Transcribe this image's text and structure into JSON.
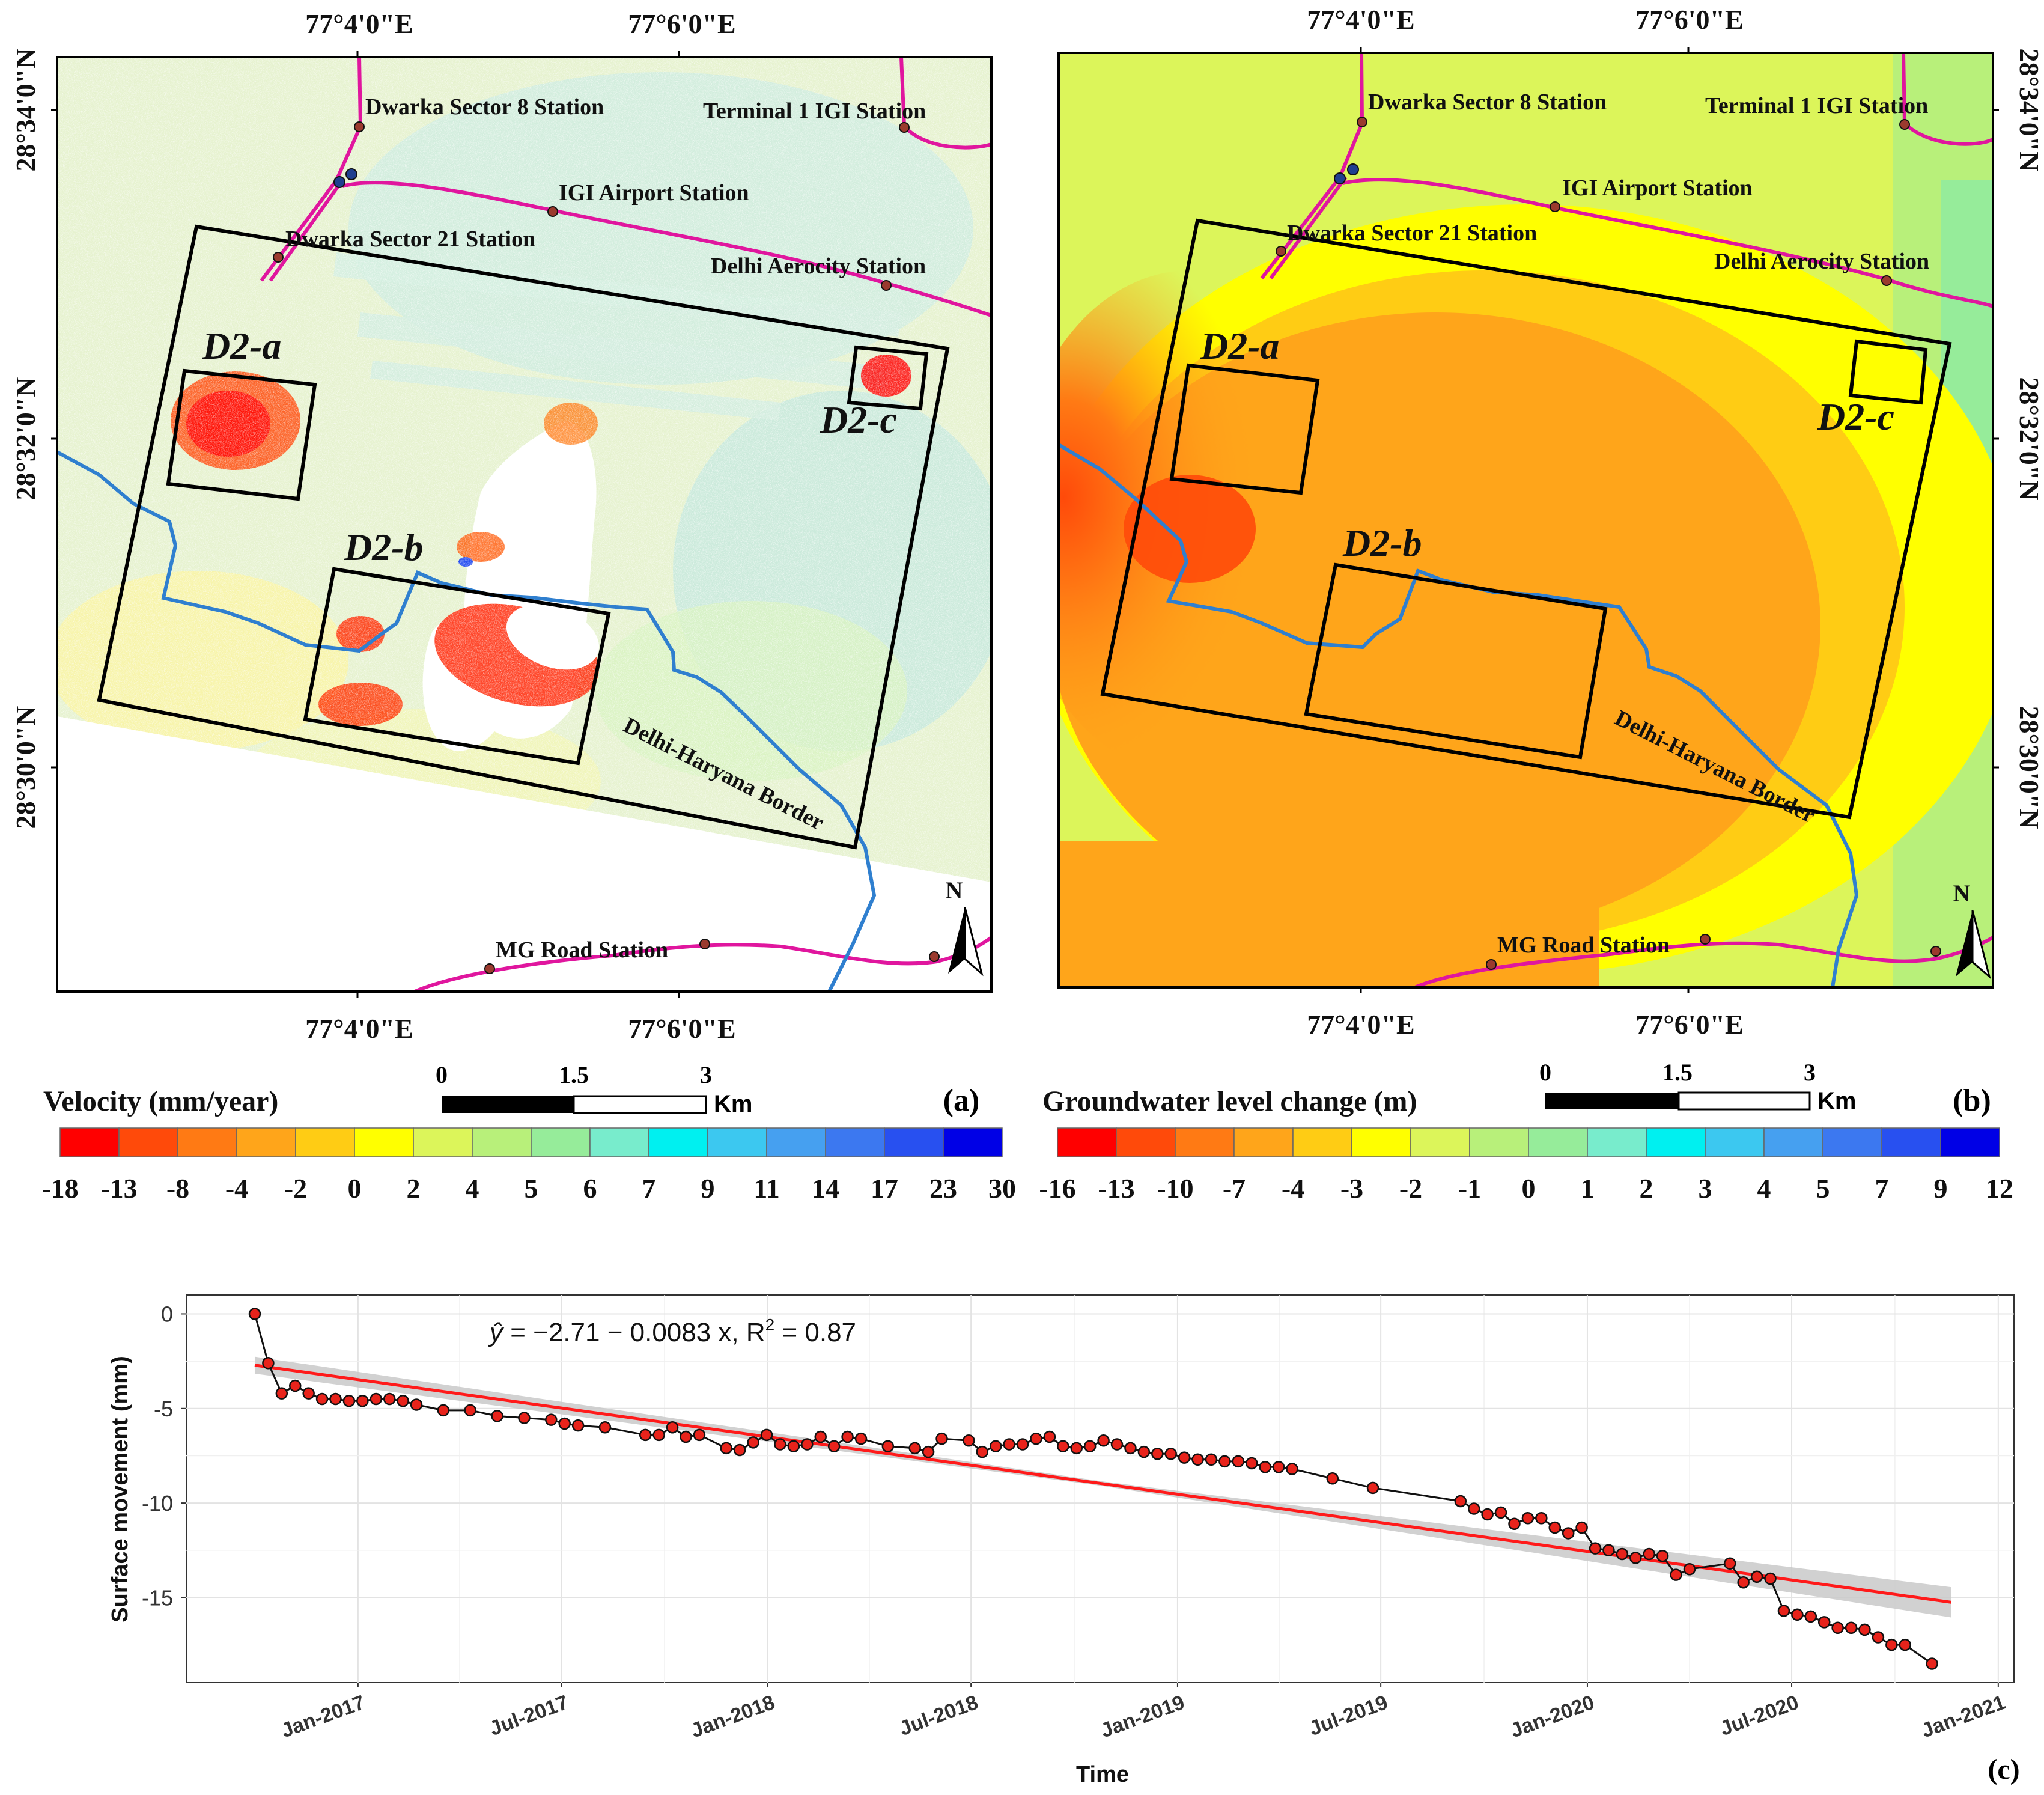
{
  "panel_a": {
    "letter": "(a)",
    "top_ticks": [
      "77°4'0\"E",
      "77°6'0\"E"
    ],
    "bottom_ticks": [
      "77°4'0\"E",
      "77°6'0\"E"
    ],
    "left_ticks": [
      "28°34'0\"N",
      "28°32'0\"N",
      "28°30'0\"N"
    ],
    "stations": [
      "Dwarka Sector 8 Station",
      "Terminal 1 IGI Station",
      "IGI Airport Station",
      "Dwarka Sector 21 Station",
      "Delhi Aerocity Station",
      "MG Road Station"
    ],
    "zones": [
      "D2-a",
      "D2-b",
      "D2-c"
    ],
    "border_label": "Delhi-Haryana Border",
    "north": "N",
    "legend": {
      "title": "Velocity (mm/year)",
      "labels": [
        "-18",
        "-13",
        "-8",
        "-4",
        "-2",
        "0",
        "2",
        "4",
        "5",
        "6",
        "7",
        "9",
        "11",
        "14",
        "17",
        "23",
        "30"
      ],
      "colors": [
        "#ff0000",
        "#ff4a0a",
        "#ff7a14",
        "#ffa51a",
        "#ffcc14",
        "#ffff00",
        "#dcf55a",
        "#b8f07a",
        "#96ec9a",
        "#78eccc",
        "#00f0f0",
        "#3cc8f0",
        "#46a0f0",
        "#3c78f0",
        "#2850f0",
        "#0000e6"
      ]
    },
    "scale": {
      "labels": [
        "0",
        "1.5",
        "3"
      ],
      "unit": "Km"
    }
  },
  "panel_b": {
    "letter": "(b)",
    "top_ticks": [
      "77°4'0\"E",
      "77°6'0\"E"
    ],
    "bottom_ticks": [
      "77°4'0\"E",
      "77°6'0\"E"
    ],
    "right_ticks": [
      "28°34'0\"N",
      "28°32'0\"N",
      "28°30'0\"N"
    ],
    "stations": [
      "Dwarka Sector 8 Station",
      "Terminal 1 IGI Station",
      "IGI Airport Station",
      "Dwarka Sector 21 Station",
      "Delhi Aerocity Station",
      "MG Road Station"
    ],
    "zones": [
      "D2-a",
      "D2-b",
      "D2-c"
    ],
    "border_label": "Delhi-Haryana Border",
    "north": "N",
    "legend": {
      "title": "Groundwater level change (m)",
      "labels": [
        "-16",
        "-13",
        "-10",
        "-7",
        "-4",
        "-3",
        "-2",
        "-1",
        "0",
        "1",
        "2",
        "3",
        "4",
        "5",
        "7",
        "9",
        "12"
      ],
      "colors": [
        "#ff0000",
        "#ff4a0a",
        "#ff7a14",
        "#ffa51a",
        "#ffcc14",
        "#ffff00",
        "#dcf55a",
        "#b8f07a",
        "#96ec9a",
        "#78eccc",
        "#00f0f0",
        "#3cc8f0",
        "#46a0f0",
        "#3c78f0",
        "#2850f0",
        "#0000e6"
      ]
    },
    "scale": {
      "labels": [
        "0",
        "1.5",
        "3"
      ],
      "unit": "Km"
    }
  },
  "panel_c": {
    "letter": "(c)",
    "equation": {
      "yhat": "ŷ",
      "body": " = −2.71 − 0.0083 x, R",
      "sup": "2",
      "tail": " = 0.87"
    }
  },
  "colors": {
    "metro": "#e0169e",
    "border": "#2f7fcf",
    "fit": "#ff1a1a",
    "points": "#e8231b"
  },
  "chart_data": {
    "type": "scatter",
    "title": "",
    "xlabel": "Time",
    "ylabel": "Surface movement (mm)",
    "x_range": [
      "2016-08-01",
      "2021-01-15"
    ],
    "ylim": [
      -19.5,
      1
    ],
    "yticks": [
      0,
      -5,
      -10,
      -15
    ],
    "ytick_labels": [
      "0",
      "-5",
      "-10",
      "-15"
    ],
    "xtick_labels": [
      "Jan-2017",
      "Jul-2017",
      "Jan-2018",
      "Jul-2018",
      "Jan-2019",
      "Jul-2019",
      "Jan-2020",
      "Jul-2020",
      "Jan-2021"
    ],
    "xtick_dates": [
      "2017-01-01",
      "2017-07-01",
      "2018-01-01",
      "2018-07-01",
      "2019-01-01",
      "2019-07-01",
      "2020-01-01",
      "2020-07-01",
      "2021-01-01"
    ],
    "fit": {
      "intercept": -2.71,
      "slope_per_day": -0.0083,
      "r2": 0.87,
      "start": "2016-10-01",
      "end": "2020-11-20"
    },
    "series": [
      {
        "name": "Surface movement",
        "x": [
          "2016-10-01",
          "2016-10-13",
          "2016-10-25",
          "2016-11-06",
          "2016-11-18",
          "2016-11-30",
          "2016-12-12",
          "2016-12-24",
          "2017-01-05",
          "2017-01-17",
          "2017-01-29",
          "2017-02-10",
          "2017-02-22",
          "2017-03-18",
          "2017-04-11",
          "2017-05-05",
          "2017-05-29",
          "2017-06-22",
          "2017-07-04",
          "2017-07-16",
          "2017-08-09",
          "2017-09-14",
          "2017-09-26",
          "2017-10-08",
          "2017-10-20",
          "2017-11-01",
          "2017-11-25",
          "2017-12-07",
          "2017-12-19",
          "2017-12-31",
          "2018-01-12",
          "2018-01-24",
          "2018-02-05",
          "2018-02-17",
          "2018-03-01",
          "2018-03-13",
          "2018-03-25",
          "2018-04-18",
          "2018-05-12",
          "2018-05-24",
          "2018-06-05",
          "2018-06-29",
          "2018-07-11",
          "2018-07-23",
          "2018-08-04",
          "2018-08-16",
          "2018-08-28",
          "2018-09-09",
          "2018-09-21",
          "2018-10-03",
          "2018-10-15",
          "2018-10-27",
          "2018-11-08",
          "2018-11-20",
          "2018-12-02",
          "2018-12-14",
          "2018-12-26",
          "2019-01-07",
          "2019-01-19",
          "2019-01-31",
          "2019-02-12",
          "2019-02-24",
          "2019-03-08",
          "2019-03-20",
          "2019-04-01",
          "2019-04-13",
          "2019-05-19",
          "2019-06-24",
          "2019-09-10",
          "2019-09-22",
          "2019-10-04",
          "2019-10-16",
          "2019-10-28",
          "2019-11-09",
          "2019-11-21",
          "2019-12-03",
          "2019-12-15",
          "2019-12-27",
          "2020-01-08",
          "2020-01-20",
          "2020-02-01",
          "2020-02-13",
          "2020-02-25",
          "2020-03-08",
          "2020-03-20",
          "2020-04-01",
          "2020-05-07",
          "2020-05-19",
          "2020-05-31",
          "2020-06-12",
          "2020-06-24",
          "2020-07-06",
          "2020-07-18",
          "2020-07-30",
          "2020-08-11",
          "2020-08-23",
          "2020-09-04",
          "2020-09-16",
          "2020-09-28",
          "2020-10-10",
          "2020-11-03"
        ],
        "y": [
          0.0,
          -2.6,
          -4.2,
          -3.8,
          -4.2,
          -4.5,
          -4.5,
          -4.6,
          -4.6,
          -4.5,
          -4.5,
          -4.6,
          -4.8,
          -5.1,
          -5.1,
          -5.4,
          -5.5,
          -5.6,
          -5.8,
          -5.9,
          -6.0,
          -6.4,
          -6.4,
          -6.0,
          -6.5,
          -6.4,
          -7.1,
          -7.2,
          -6.8,
          -6.4,
          -6.9,
          -7.0,
          -6.9,
          -6.5,
          -7.0,
          -6.5,
          -6.6,
          -7.0,
          -7.1,
          -7.3,
          -6.6,
          -6.7,
          -7.3,
          -7.0,
          -6.9,
          -6.9,
          -6.6,
          -6.5,
          -7.0,
          -7.1,
          -7.0,
          -6.7,
          -6.9,
          -7.1,
          -7.3,
          -7.4,
          -7.4,
          -7.6,
          -7.7,
          -7.7,
          -7.8,
          -7.8,
          -7.9,
          -8.1,
          -8.1,
          -8.2,
          -8.7,
          -9.2,
          -9.9,
          -10.3,
          -10.6,
          -10.5,
          -11.1,
          -10.8,
          -10.8,
          -11.3,
          -11.6,
          -11.3,
          -12.4,
          -12.5,
          -12.7,
          -12.9,
          -12.7,
          -12.8,
          -13.8,
          -13.5,
          -13.2,
          -14.2,
          -13.9,
          -14.0,
          -15.7,
          -15.9,
          -16.0,
          -16.3,
          -16.6,
          -16.6,
          -16.7,
          -17.1,
          -17.5,
          -17.5,
          -18.5
        ]
      }
    ]
  }
}
